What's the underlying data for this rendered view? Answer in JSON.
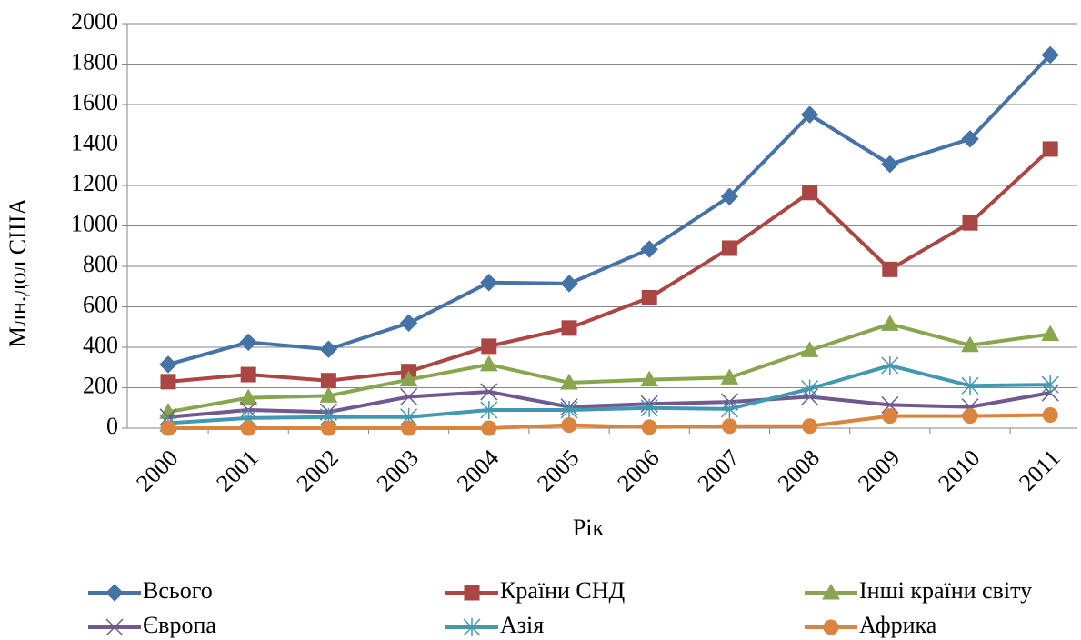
{
  "chart_data": {
    "type": "line",
    "categories": [
      "2000",
      "2001",
      "2002",
      "2003",
      "2004",
      "2005",
      "2006",
      "2007",
      "2008",
      "2009",
      "2010",
      "2011"
    ],
    "x_label": "Рік",
    "y_label": "Млн.дол США",
    "ylim": [
      0,
      2000
    ],
    "yticks": [
      0,
      200,
      400,
      600,
      800,
      1000,
      1200,
      1400,
      1600,
      1800,
      2000
    ],
    "grid": true,
    "legend": "bottom",
    "series": [
      {
        "name": "Всього",
        "color": "#4572a7",
        "marker": "diamond",
        "values": [
          315,
          425,
          390,
          520,
          720,
          715,
          885,
          1145,
          1550,
          1305,
          1430,
          1845
        ]
      },
      {
        "name": "Країни СНД",
        "color": "#aa4643",
        "marker": "square",
        "values": [
          230,
          265,
          235,
          280,
          405,
          495,
          645,
          890,
          1165,
          785,
          1015,
          1380
        ]
      },
      {
        "name": "Інші країни світу",
        "color": "#89a54e",
        "marker": "triangle",
        "values": [
          80,
          150,
          160,
          240,
          315,
          225,
          240,
          250,
          385,
          515,
          410,
          465
        ]
      },
      {
        "name": "Європа",
        "color": "#71588f",
        "marker": "x",
        "values": [
          55,
          90,
          80,
          155,
          180,
          105,
          120,
          130,
          155,
          115,
          105,
          175
        ]
      },
      {
        "name": "Азія",
        "color": "#4198af",
        "marker": "star",
        "values": [
          25,
          50,
          55,
          55,
          90,
          90,
          100,
          95,
          195,
          310,
          210,
          215
        ]
      },
      {
        "name": "Африка",
        "color": "#db843d",
        "marker": "circle",
        "values": [
          0,
          0,
          0,
          0,
          0,
          15,
          5,
          10,
          10,
          60,
          60,
          65
        ]
      }
    ]
  }
}
